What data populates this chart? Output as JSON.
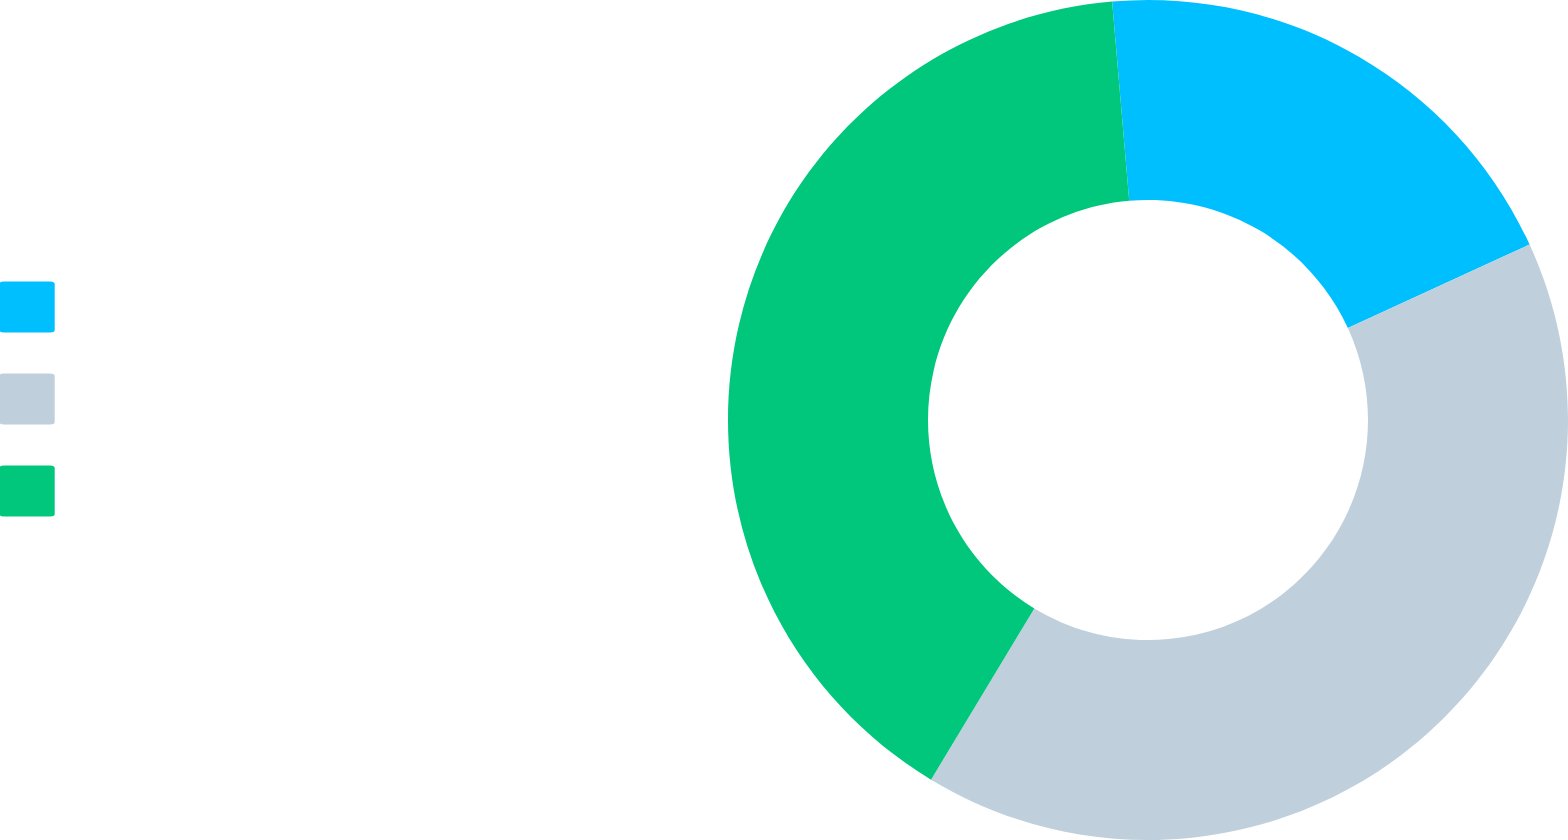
{
  "chart_data": {
    "type": "donut",
    "categories": [
      null,
      null,
      null
    ],
    "values": [
      19.5,
      40.5,
      40
    ],
    "colors": [
      "#00bfff",
      "#bfd0dc",
      "#00c77b"
    ]
  }
}
